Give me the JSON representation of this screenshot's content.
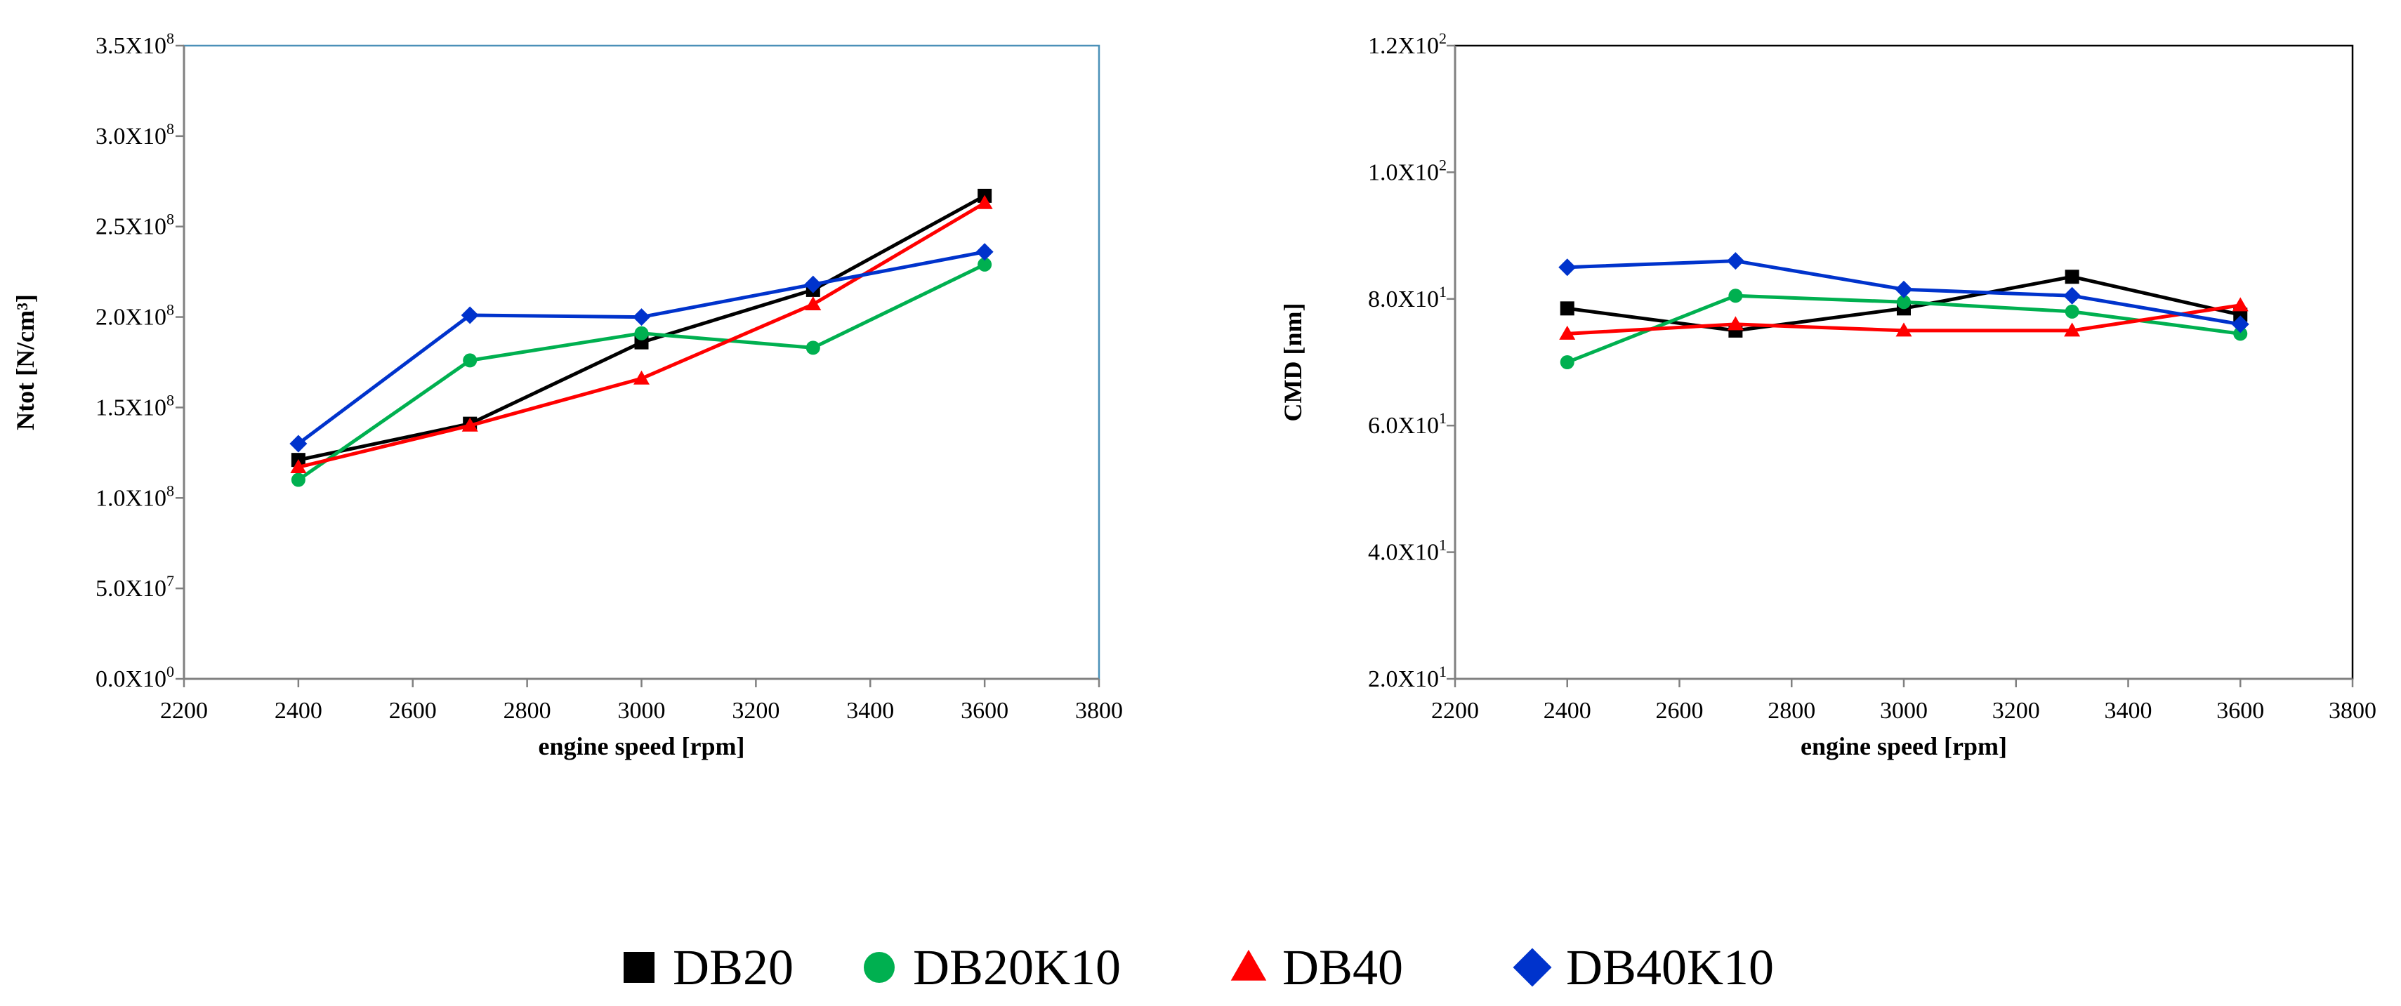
{
  "series_styles": [
    {
      "name": "DB20",
      "color": "#000000",
      "marker": "square"
    },
    {
      "name": "DB20K10",
      "color": "#00b050",
      "marker": "circle"
    },
    {
      "name": "DB40",
      "color": "#ff0000",
      "marker": "triangle"
    },
    {
      "name": "DB40K10",
      "color": "#0033cc",
      "marker": "diamond"
    }
  ],
  "chart_data": [
    {
      "type": "line",
      "xlabel": "engine speed [rpm]",
      "ylabel": "Ntot    [N/cm³]",
      "xlim": [
        2200,
        3800
      ],
      "ylim": [
        0,
        350000000
      ],
      "xticks": [
        2200,
        2400,
        2600,
        2800,
        3000,
        3200,
        3400,
        3600,
        3800
      ],
      "yticks": [
        {
          "value": 0,
          "mant": "0.0X10",
          "exp": "0"
        },
        {
          "value": 50000000,
          "mant": "5.0X10",
          "exp": "7"
        },
        {
          "value": 100000000,
          "mant": "1.0X10",
          "exp": "8"
        },
        {
          "value": 150000000,
          "mant": "1.5X10",
          "exp": "8"
        },
        {
          "value": 200000000,
          "mant": "2.0X10",
          "exp": "8"
        },
        {
          "value": 250000000,
          "mant": "2.5X10",
          "exp": "8"
        },
        {
          "value": 300000000,
          "mant": "3.0X10",
          "exp": "8"
        },
        {
          "value": 350000000,
          "mant": "3.5X10",
          "exp": "8"
        }
      ],
      "frame_color": "#4a90b8",
      "series": [
        {
          "name": "DB20",
          "points": [
            [
              2400,
              121000000
            ],
            [
              2700,
              141000000
            ],
            [
              3000,
              186000000
            ],
            [
              3300,
              215000000
            ],
            [
              3600,
              267000000
            ]
          ]
        },
        {
          "name": "DB20K10",
          "points": [
            [
              2400,
              110000000
            ],
            [
              2700,
              176000000
            ],
            [
              3000,
              191000000
            ],
            [
              3300,
              183000000
            ],
            [
              3600,
              229000000
            ]
          ]
        },
        {
          "name": "DB40",
          "points": [
            [
              2400,
              117000000
            ],
            [
              2700,
              140000000
            ],
            [
              3000,
              166000000
            ],
            [
              3300,
              207000000
            ],
            [
              3600,
              263000000
            ]
          ]
        },
        {
          "name": "DB40K10",
          "points": [
            [
              2400,
              130000000
            ],
            [
              2700,
              201000000
            ],
            [
              3000,
              200000000
            ],
            [
              3300,
              218000000
            ],
            [
              3600,
              236000000
            ]
          ]
        }
      ]
    },
    {
      "type": "line",
      "xlabel": "engine speed [rpm]",
      "ylabel": "CMD [nm]",
      "xlim": [
        2200,
        3800
      ],
      "ylim": [
        20,
        120
      ],
      "xticks": [
        2200,
        2400,
        2600,
        2800,
        3000,
        3200,
        3400,
        3600,
        3800
      ],
      "yticks": [
        {
          "value": 20,
          "mant": "2.0X10",
          "exp": "1"
        },
        {
          "value": 40,
          "mant": "4.0X10",
          "exp": "1"
        },
        {
          "value": 60,
          "mant": "6.0X10",
          "exp": "1"
        },
        {
          "value": 80,
          "mant": "8.0X10",
          "exp": "1"
        },
        {
          "value": 100,
          "mant": "1.0X10",
          "exp": "2"
        },
        {
          "value": 120,
          "mant": "1.2X10",
          "exp": "2"
        }
      ],
      "frame_color": "#000000",
      "series": [
        {
          "name": "DB20",
          "points": [
            [
              2400,
              78.5
            ],
            [
              2700,
              75
            ],
            [
              3000,
              78.5
            ],
            [
              3300,
              83.5
            ],
            [
              3600,
              77.5
            ]
          ]
        },
        {
          "name": "DB20K10",
          "points": [
            [
              2400,
              70
            ],
            [
              2700,
              80.5
            ],
            [
              3000,
              79.5
            ],
            [
              3300,
              78
            ],
            [
              3600,
              74.5
            ]
          ]
        },
        {
          "name": "DB40",
          "points": [
            [
              2400,
              74.5
            ],
            [
              2700,
              76
            ],
            [
              3000,
              75
            ],
            [
              3300,
              75
            ],
            [
              3600,
              79
            ]
          ]
        },
        {
          "name": "DB40K10",
          "points": [
            [
              2400,
              85
            ],
            [
              2700,
              86
            ],
            [
              3000,
              81.5
            ],
            [
              3300,
              80.5
            ],
            [
              3600,
              76
            ]
          ]
        }
      ]
    }
  ],
  "legend": {
    "position": "bottom-center",
    "items": [
      "DB20",
      "DB20K10",
      "DB40",
      "DB40K10"
    ]
  }
}
